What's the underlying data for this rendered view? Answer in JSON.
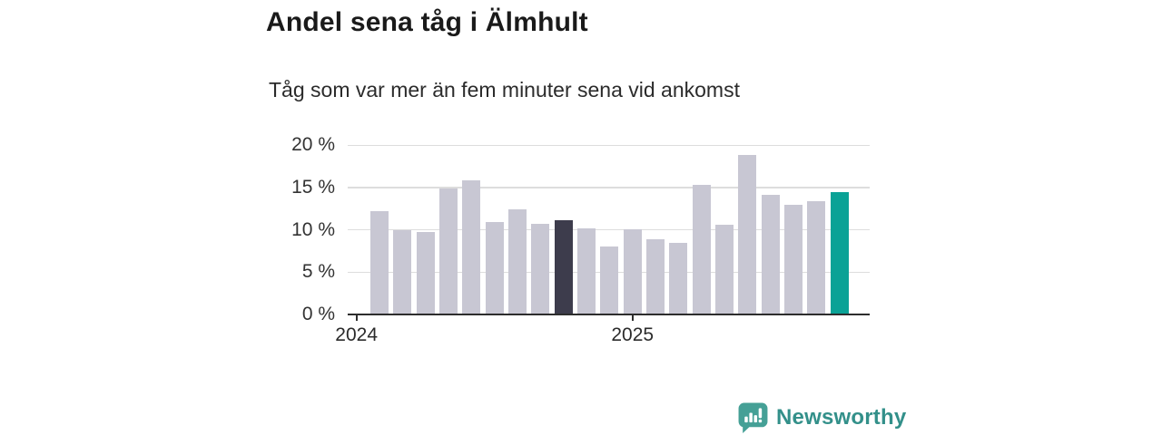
{
  "chart_data": {
    "type": "bar",
    "title": "Andel sena tåg i Älmhult",
    "subtitle": "Tåg som var mer än fem minuter sena vid ankomst",
    "unit": "%",
    "x": [
      "2024-02",
      "2024-03",
      "2024-04",
      "2024-05",
      "2024-06",
      "2024-07",
      "2024-08",
      "2024-09",
      "2024-10",
      "2024-11",
      "2024-12",
      "2025-01",
      "2025-02",
      "2025-03",
      "2025-04",
      "2025-05",
      "2025-06",
      "2025-07",
      "2025-08",
      "2025-09",
      "2025-10"
    ],
    "values": [
      12.2,
      10.0,
      9.8,
      14.9,
      15.9,
      10.9,
      12.4,
      10.7,
      11.1,
      10.2,
      8.0,
      10.1,
      8.9,
      8.5,
      15.3,
      10.6,
      18.9,
      14.1,
      13.0,
      13.4,
      14.5
    ],
    "bar_color": "#c8c7d3",
    "highlights": [
      {
        "index": 8,
        "x": "2024-10",
        "color": "#3d3c4c"
      },
      {
        "index": 20,
        "x": "2025-10",
        "color": "#0aa296"
      }
    ],
    "ylim": [
      0,
      20.5
    ],
    "yticks": [
      {
        "value": 0,
        "label": "0 %"
      },
      {
        "value": 5,
        "label": "5 %"
      },
      {
        "value": 10,
        "label": "10 %"
      },
      {
        "value": 15,
        "label": "15 %"
      },
      {
        "value": 20,
        "label": "20 %"
      }
    ],
    "xticks": [
      {
        "label": "2024",
        "month_index": -1
      },
      {
        "label": "2025",
        "month_index": 11
      }
    ],
    "grid": "horizontal",
    "legend": "none"
  },
  "branding": {
    "logo_text": "Newsworthy",
    "logo_text_color": "#33908a",
    "icon": "bar-chart-speech-bubble-icon",
    "icon_color": "#45a096"
  }
}
